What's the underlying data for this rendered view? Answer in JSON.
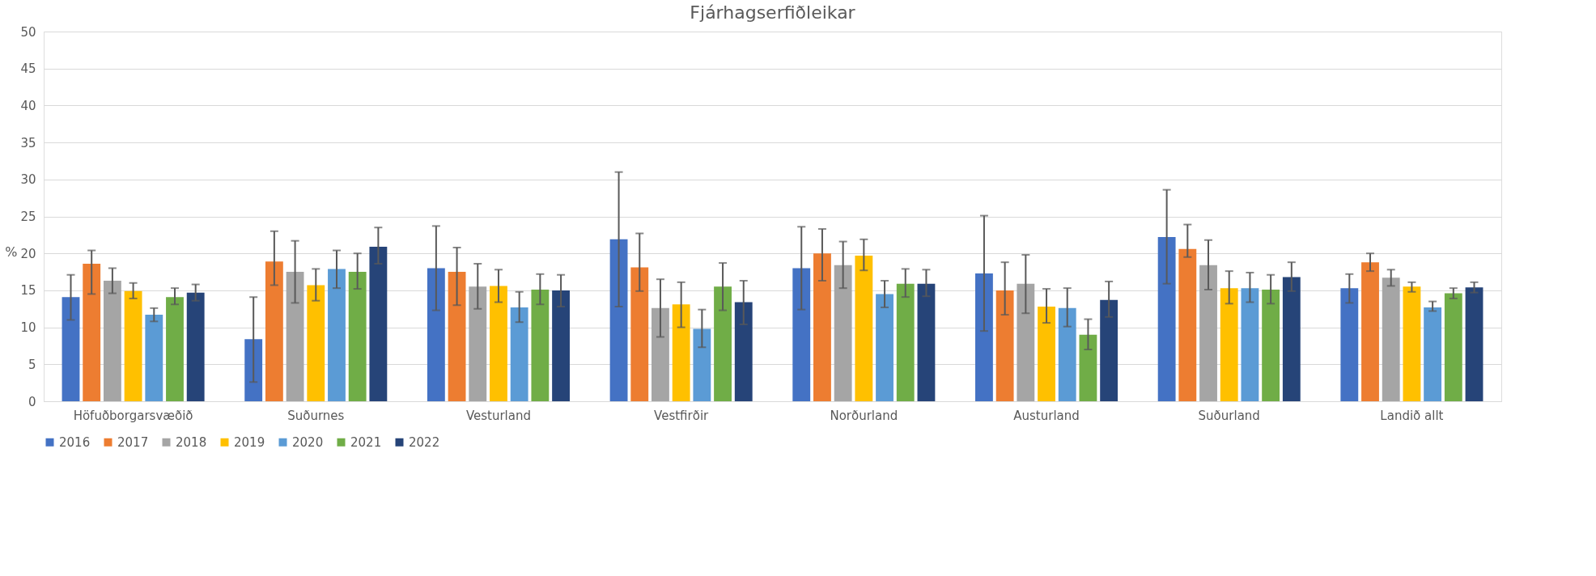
{
  "chart_data": {
    "type": "bar",
    "title": "Fjárhagserfiðleikar",
    "ylabel": "%",
    "categories": [
      "Höfuðborgarsvæðið",
      "Suðurnes",
      "Vesturland",
      "Vestfirðir",
      "Norðurland",
      "Austurland",
      "Suðurland",
      "Landið allt"
    ],
    "ylim": [
      0,
      50
    ],
    "yticks": [
      0,
      5,
      10,
      15,
      20,
      25,
      30,
      35,
      40,
      45,
      50
    ],
    "grid": "y",
    "legend": "bottom",
    "series": [
      {
        "name": "2016",
        "color": "#4472c4",
        "values": [
          14.1,
          8.4,
          18.0,
          21.9,
          18.0,
          17.3,
          22.2,
          15.3
        ],
        "errors": [
          [
            11.0,
            17.1
          ],
          [
            2.6,
            14.1
          ],
          [
            12.3,
            23.7
          ],
          [
            12.8,
            31.0
          ],
          [
            12.4,
            23.6
          ],
          [
            9.5,
            25.1
          ],
          [
            15.9,
            28.6
          ],
          [
            13.3,
            17.2
          ]
        ]
      },
      {
        "name": "2017",
        "color": "#ed7d31",
        "values": [
          18.6,
          18.9,
          17.5,
          18.1,
          20.0,
          15.0,
          20.6,
          18.8
        ],
        "errors": [
          [
            14.5,
            20.4
          ],
          [
            15.7,
            23.0
          ],
          [
            13.0,
            20.8
          ],
          [
            14.9,
            22.7
          ],
          [
            16.3,
            23.3
          ],
          [
            11.7,
            18.8
          ],
          [
            19.5,
            23.9
          ],
          [
            17.6,
            20.0
          ]
        ]
      },
      {
        "name": "2018",
        "color": "#a5a5a5",
        "values": [
          16.3,
          17.5,
          15.5,
          12.6,
          18.4,
          15.9,
          18.4,
          16.7
        ],
        "errors": [
          [
            14.6,
            18.0
          ],
          [
            13.3,
            21.7
          ],
          [
            12.5,
            18.6
          ],
          [
            8.7,
            16.5
          ],
          [
            15.3,
            21.6
          ],
          [
            11.9,
            19.8
          ],
          [
            15.1,
            21.8
          ],
          [
            15.6,
            17.8
          ]
        ]
      },
      {
        "name": "2019",
        "color": "#ffc000",
        "values": [
          14.9,
          15.7,
          15.6,
          13.1,
          19.7,
          12.8,
          15.3,
          15.5
        ],
        "errors": [
          [
            13.9,
            16.0
          ],
          [
            13.6,
            17.9
          ],
          [
            13.4,
            17.8
          ],
          [
            10.0,
            16.1
          ],
          [
            17.7,
            21.9
          ],
          [
            10.6,
            15.2
          ],
          [
            13.2,
            17.6
          ],
          [
            14.8,
            16.1
          ]
        ]
      },
      {
        "name": "2020",
        "color": "#5b9bd5",
        "values": [
          11.7,
          17.9,
          12.7,
          9.8,
          14.5,
          12.6,
          15.3,
          12.7
        ],
        "errors": [
          [
            10.8,
            12.6
          ],
          [
            15.3,
            20.4
          ],
          [
            10.7,
            14.8
          ],
          [
            7.3,
            12.4
          ],
          [
            12.7,
            16.3
          ],
          [
            10.1,
            15.3
          ],
          [
            13.4,
            17.4
          ],
          [
            12.2,
            13.5
          ]
        ]
      },
      {
        "name": "2021",
        "color": "#70ad47",
        "values": [
          14.1,
          17.5,
          15.1,
          15.5,
          15.9,
          9.0,
          15.1,
          14.6
        ],
        "errors": [
          [
            13.1,
            15.3
          ],
          [
            15.2,
            20.0
          ],
          [
            13.1,
            17.2
          ],
          [
            12.3,
            18.7
          ],
          [
            14.1,
            17.9
          ],
          [
            7.0,
            11.1
          ],
          [
            13.2,
            17.1
          ],
          [
            13.9,
            15.3
          ]
        ]
      },
      {
        "name": "2022",
        "color": "#264478",
        "values": [
          14.7,
          20.9,
          15.0,
          13.4,
          15.9,
          13.7,
          16.8,
          15.4
        ],
        "errors": [
          [
            13.6,
            15.8
          ],
          [
            18.6,
            23.5
          ],
          [
            12.8,
            17.1
          ],
          [
            10.4,
            16.3
          ],
          [
            14.2,
            17.8
          ],
          [
            11.4,
            16.2
          ],
          [
            14.9,
            18.8
          ],
          [
            14.7,
            16.1
          ]
        ]
      }
    ]
  }
}
